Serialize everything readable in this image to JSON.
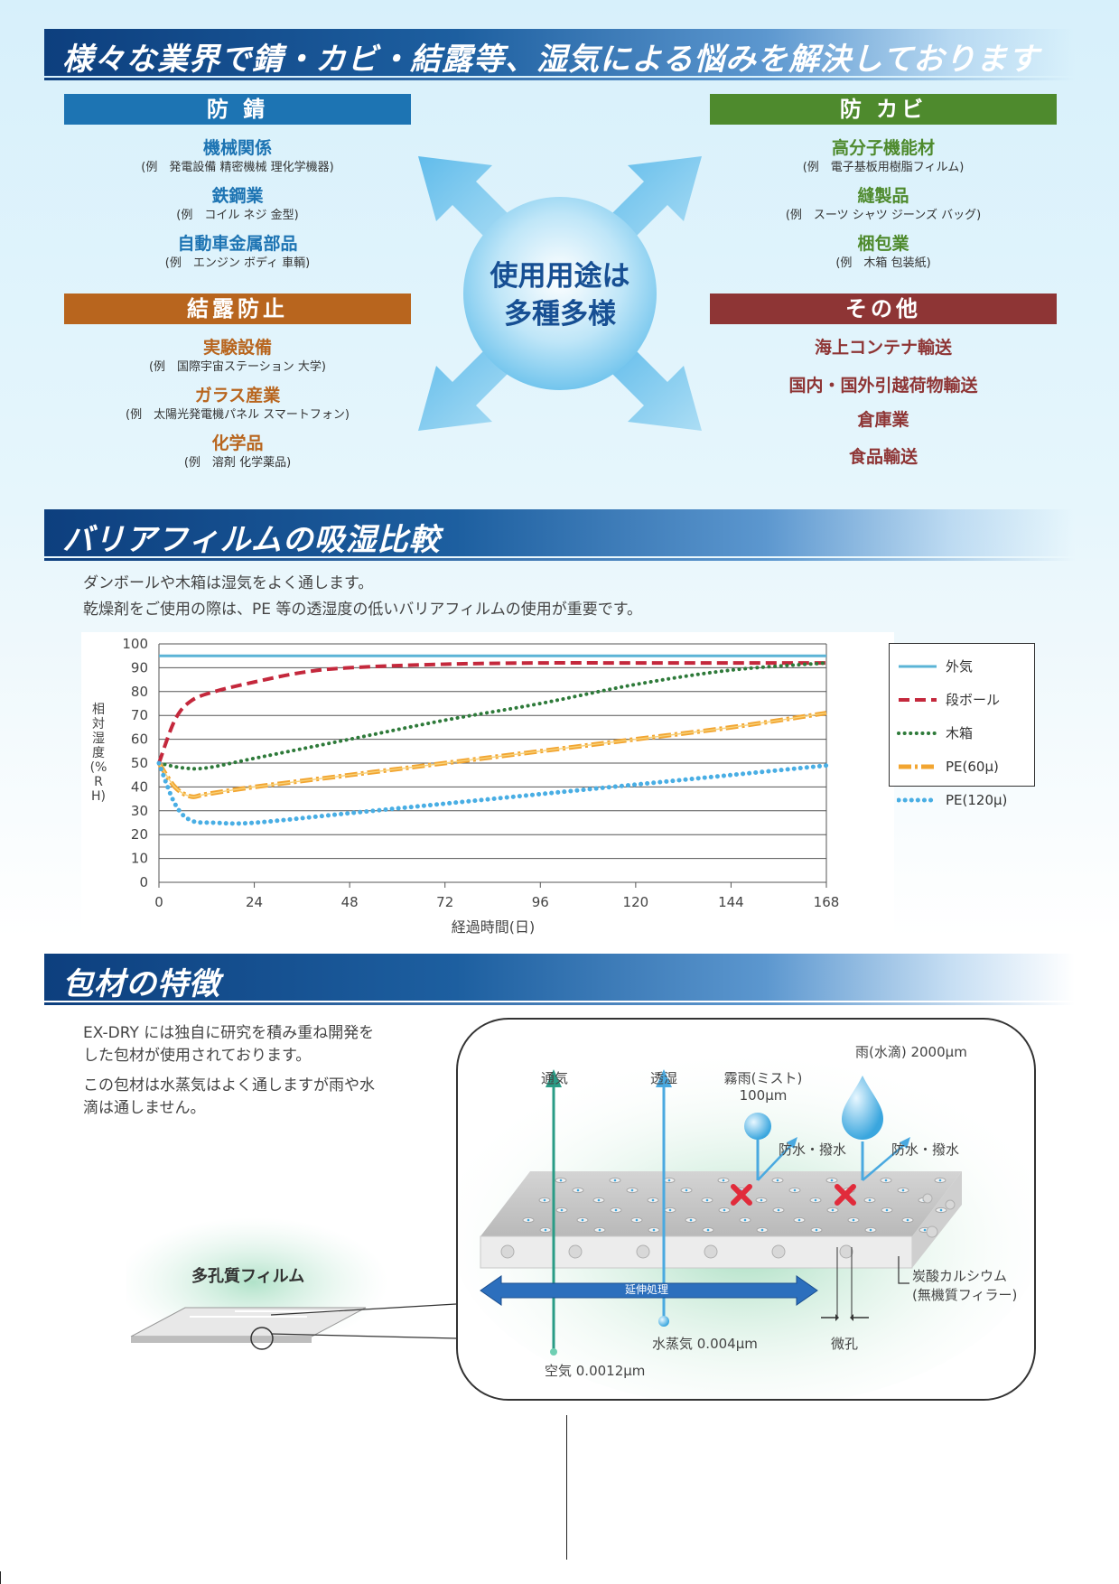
{
  "section1": {
    "title": "様々な業界で錆・カビ・結露等、湿気による悩みを解決しております",
    "center_line1": "使用用途は",
    "center_line2": "多種多様",
    "rust": {
      "label": "防 錆",
      "color": "#1d74b3",
      "items": [
        {
          "title": "機械関係",
          "example": "(例　発電設備 精密機械 理化学機器)"
        },
        {
          "title": "鉄鋼業",
          "example": "(例　コイル ネジ 金型)"
        },
        {
          "title": "自動車金属部品",
          "example": "(例　エンジン ボディ 車輌)"
        }
      ]
    },
    "mold": {
      "label": "防 カビ",
      "color": "#4e8a2d",
      "items": [
        {
          "title": "高分子機能材",
          "example": "(例　電子基板用樹脂フィルム)"
        },
        {
          "title": "縫製品",
          "example": "(例　スーツ シャツ ジーンズ バッグ)"
        },
        {
          "title": "梱包業",
          "example": "(例　木箱 包装紙)"
        }
      ]
    },
    "condensation": {
      "label": "結露防止",
      "color": "#b8651e",
      "items": [
        {
          "title": "実験設備",
          "example": "(例　国際宇宙ステーション 大学)"
        },
        {
          "title": "ガラス産業",
          "example": "(例　太陽光発電機パネル スマートフォン)"
        },
        {
          "title": "化学品",
          "example": "(例　溶剤 化学薬品)"
        }
      ]
    },
    "other": {
      "label": "その他",
      "color": "#8e3535",
      "items": [
        "海上コンテナ輸送",
        "国内・国外引越荷物輸送",
        "倉庫業",
        "食品輸送"
      ]
    }
  },
  "section2": {
    "title": "バリアフィルムの吸湿比較",
    "text1": "ダンボールや木箱は湿気をよく通します。",
    "text2": "乾燥剤をご使用の際は、PE 等の透湿度の低いバリアフィルムの使用が重要です。"
  },
  "chart_data": {
    "type": "line",
    "xlabel": "経過時間(日)",
    "ylabel": "相対湿度(%RH)",
    "xlim": [
      0,
      168
    ],
    "ylim": [
      0,
      100
    ],
    "xticks": [
      0,
      24,
      48,
      72,
      96,
      120,
      144,
      168
    ],
    "yticks": [
      0,
      10,
      20,
      30,
      40,
      50,
      60,
      70,
      80,
      90,
      100
    ],
    "grid": "horizontal",
    "legend_position": "right",
    "series": [
      {
        "name": "外気",
        "color": "#5bb4d6",
        "style": "solid",
        "x": [
          0,
          168
        ],
        "y": [
          95,
          95
        ]
      },
      {
        "name": "段ボール",
        "color": "#c4283c",
        "style": "dashed",
        "x": [
          0,
          4,
          8,
          14,
          24,
          36,
          48,
          72,
          96,
          120,
          144,
          168
        ],
        "y": [
          50,
          68,
          76,
          80,
          84,
          88,
          90,
          91.5,
          92,
          92,
          92,
          92
        ]
      },
      {
        "name": "木箱",
        "color": "#2e7a3a",
        "style": "dotted",
        "x": [
          0,
          6,
          12,
          24,
          48,
          72,
          96,
          120,
          144,
          168
        ],
        "y": [
          50,
          48,
          48,
          52,
          60,
          68,
          75,
          83,
          89,
          92
        ]
      },
      {
        "name": "PE(60μ)",
        "color": "#f2a531",
        "style": "dashdot",
        "x": [
          0,
          4,
          8,
          12,
          24,
          48,
          72,
          96,
          120,
          144,
          168
        ],
        "y": [
          50,
          40,
          36,
          37,
          40,
          45,
          50,
          55,
          60,
          65,
          71
        ]
      },
      {
        "name": "PE(120μ)",
        "color": "#49aee4",
        "style": "dotted-thick",
        "x": [
          0,
          4,
          8,
          14,
          24,
          48,
          72,
          96,
          120,
          144,
          168
        ],
        "y": [
          50,
          33,
          26,
          25,
          25,
          29,
          33,
          37,
          41,
          45,
          49
        ]
      }
    ]
  },
  "section3": {
    "title": "包材の特徴",
    "text1a": "EX-DRY には独自に研究を積み重ね開発を",
    "text1b": "した包材が使用されております。",
    "text2a": "この包材は水蒸気はよく通しますが雨や水",
    "text2b": "滴は通しません。",
    "film_label": "多孔質フィルム",
    "labels": {
      "ventilation": "通気",
      "permeation": "透湿",
      "mist_a": "霧雨(ミスト)",
      "mist_b": "100μm",
      "rain": "雨(水滴) 2000μm",
      "waterproof1": "防水・撥水",
      "waterproof2": "防水・撥水",
      "stretch": "延伸処理",
      "filler_a": "炭酸カルシウム",
      "filler_b": "(無機質フィラー)",
      "vapor": "水蒸気 0.004μm",
      "micropore": "微孔",
      "air": "空気 0.0012μm"
    }
  }
}
